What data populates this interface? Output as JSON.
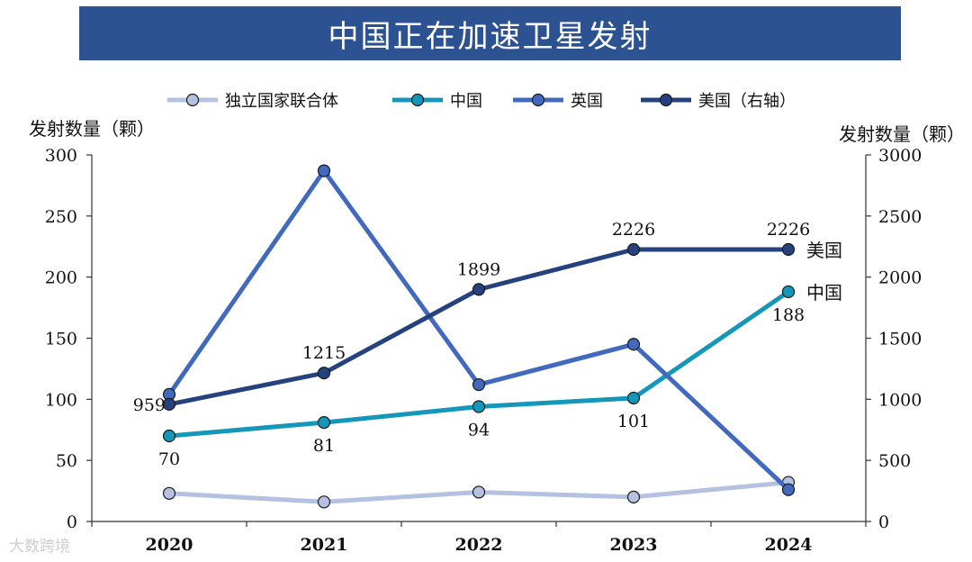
{
  "title": "中国正在加速卫星发射",
  "watermark": "大数跨境",
  "chart_data": {
    "type": "line",
    "title": "中国正在加速卫星发射",
    "categories": [
      "2020",
      "2021",
      "2022",
      "2023",
      "2024"
    ],
    "ylabel_left": "发射数量（颗）",
    "ylabel_right": "发射数量（颗）",
    "ylim_left": [
      0,
      300
    ],
    "ylim_right": [
      0,
      3000
    ],
    "yticks_left": [
      0,
      50,
      100,
      150,
      200,
      250,
      300
    ],
    "yticks_right": [
      0,
      500,
      1000,
      1500,
      2000,
      2500,
      3000
    ],
    "series": [
      {
        "name": "独立国家联合体",
        "axis": "left",
        "color": "#b4c1e0",
        "values": [
          23,
          16,
          24,
          20,
          32
        ],
        "labels": []
      },
      {
        "name": "中国",
        "axis": "left",
        "color": "#1497b8",
        "values": [
          70,
          81,
          94,
          101,
          188
        ],
        "labels": [
          "70",
          "81",
          "94",
          "101",
          "188"
        ],
        "end_label": "中国"
      },
      {
        "name": "英国",
        "axis": "left",
        "color": "#4169bd",
        "values": [
          104,
          287,
          112,
          145,
          26
        ],
        "labels": []
      },
      {
        "name": "美国（右轴）",
        "axis": "right",
        "color": "#26427e",
        "values": [
          959,
          1215,
          1899,
          2226,
          2226
        ],
        "labels": [
          "959",
          "1215",
          "1899",
          "2226",
          "2226"
        ],
        "end_label": "美国"
      }
    ]
  }
}
